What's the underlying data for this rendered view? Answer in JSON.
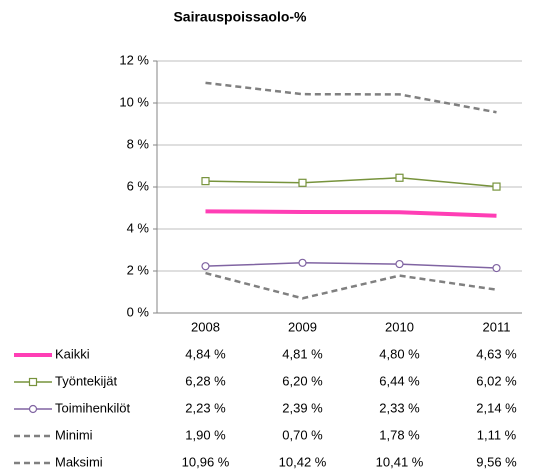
{
  "chart_data": {
    "type": "line",
    "title": "Sairauspoissaolo-%",
    "categories": [
      "2008",
      "2009",
      "2010",
      "2011"
    ],
    "ylim": [
      0,
      12
    ],
    "yticks": [
      {
        "value": 0,
        "label": "0 %"
      },
      {
        "value": 2,
        "label": "2 %"
      },
      {
        "value": 4,
        "label": "4 %"
      },
      {
        "value": 6,
        "label": "6 %"
      },
      {
        "value": 8,
        "label": "8 %"
      },
      {
        "value": 10,
        "label": "10 %"
      },
      {
        "value": 12,
        "label": "12 %"
      }
    ],
    "grid": true,
    "series": [
      {
        "name": "Kaikki",
        "color": "#ff3eb5",
        "width": 4,
        "dash": false,
        "marker": "none",
        "values": [
          4.84,
          4.81,
          4.8,
          4.63
        ],
        "value_labels": [
          "4,84 %",
          "4,81 %",
          "4,80 %",
          "4,63 %"
        ]
      },
      {
        "name": "Työntekijät",
        "color": "#77933c",
        "width": 1.5,
        "dash": false,
        "marker": "square",
        "values": [
          6.28,
          6.2,
          6.44,
          6.02
        ],
        "value_labels": [
          "6,28 %",
          "6,20 %",
          "6,44 %",
          "6,02 %"
        ]
      },
      {
        "name": "Toimihenkilöt",
        "color": "#8064a2",
        "width": 1.5,
        "dash": false,
        "marker": "circle",
        "values": [
          2.23,
          2.39,
          2.33,
          2.14
        ],
        "value_labels": [
          "2,23 %",
          "2,39 %",
          "2,33 %",
          "2,14 %"
        ]
      },
      {
        "name": "Minimi",
        "color": "#808080",
        "width": 2.5,
        "dash": true,
        "marker": "none",
        "values": [
          1.9,
          0.7,
          1.78,
          1.11
        ],
        "value_labels": [
          "1,90 %",
          "0,70 %",
          "1,78 %",
          "1,11 %"
        ]
      },
      {
        "name": "Maksimi",
        "color": "#808080",
        "width": 2.5,
        "dash": true,
        "marker": "none",
        "values": [
          10.96,
          10.42,
          10.41,
          9.56
        ],
        "value_labels": [
          "10,96 %",
          "10,42 %",
          "10,41 %",
          "9,56 %"
        ]
      }
    ]
  }
}
